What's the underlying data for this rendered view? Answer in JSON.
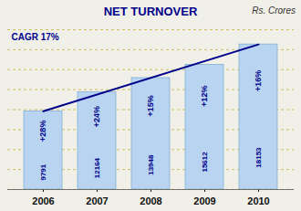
{
  "chart_data": {
    "type": "bar",
    "title": "NET TURNOVER",
    "subtitle": "Rs. Crores",
    "annotation": "CAGR 17%",
    "categories": [
      "2006",
      "2007",
      "2008",
      "2009",
      "2010"
    ],
    "values": [
      9791,
      12164,
      13948,
      15612,
      18153
    ],
    "growth_labels": [
      "+28%",
      "+24%",
      "+15%",
      "+12%",
      "+16%"
    ],
    "color": "#b8d4f0",
    "ylim": [
      0,
      20000
    ],
    "yticks": [
      0,
      2500,
      5000,
      7500,
      10000,
      12500,
      15000,
      17500,
      20000
    ],
    "grid": true,
    "data_labels": true,
    "tick_labels": "x"
  }
}
